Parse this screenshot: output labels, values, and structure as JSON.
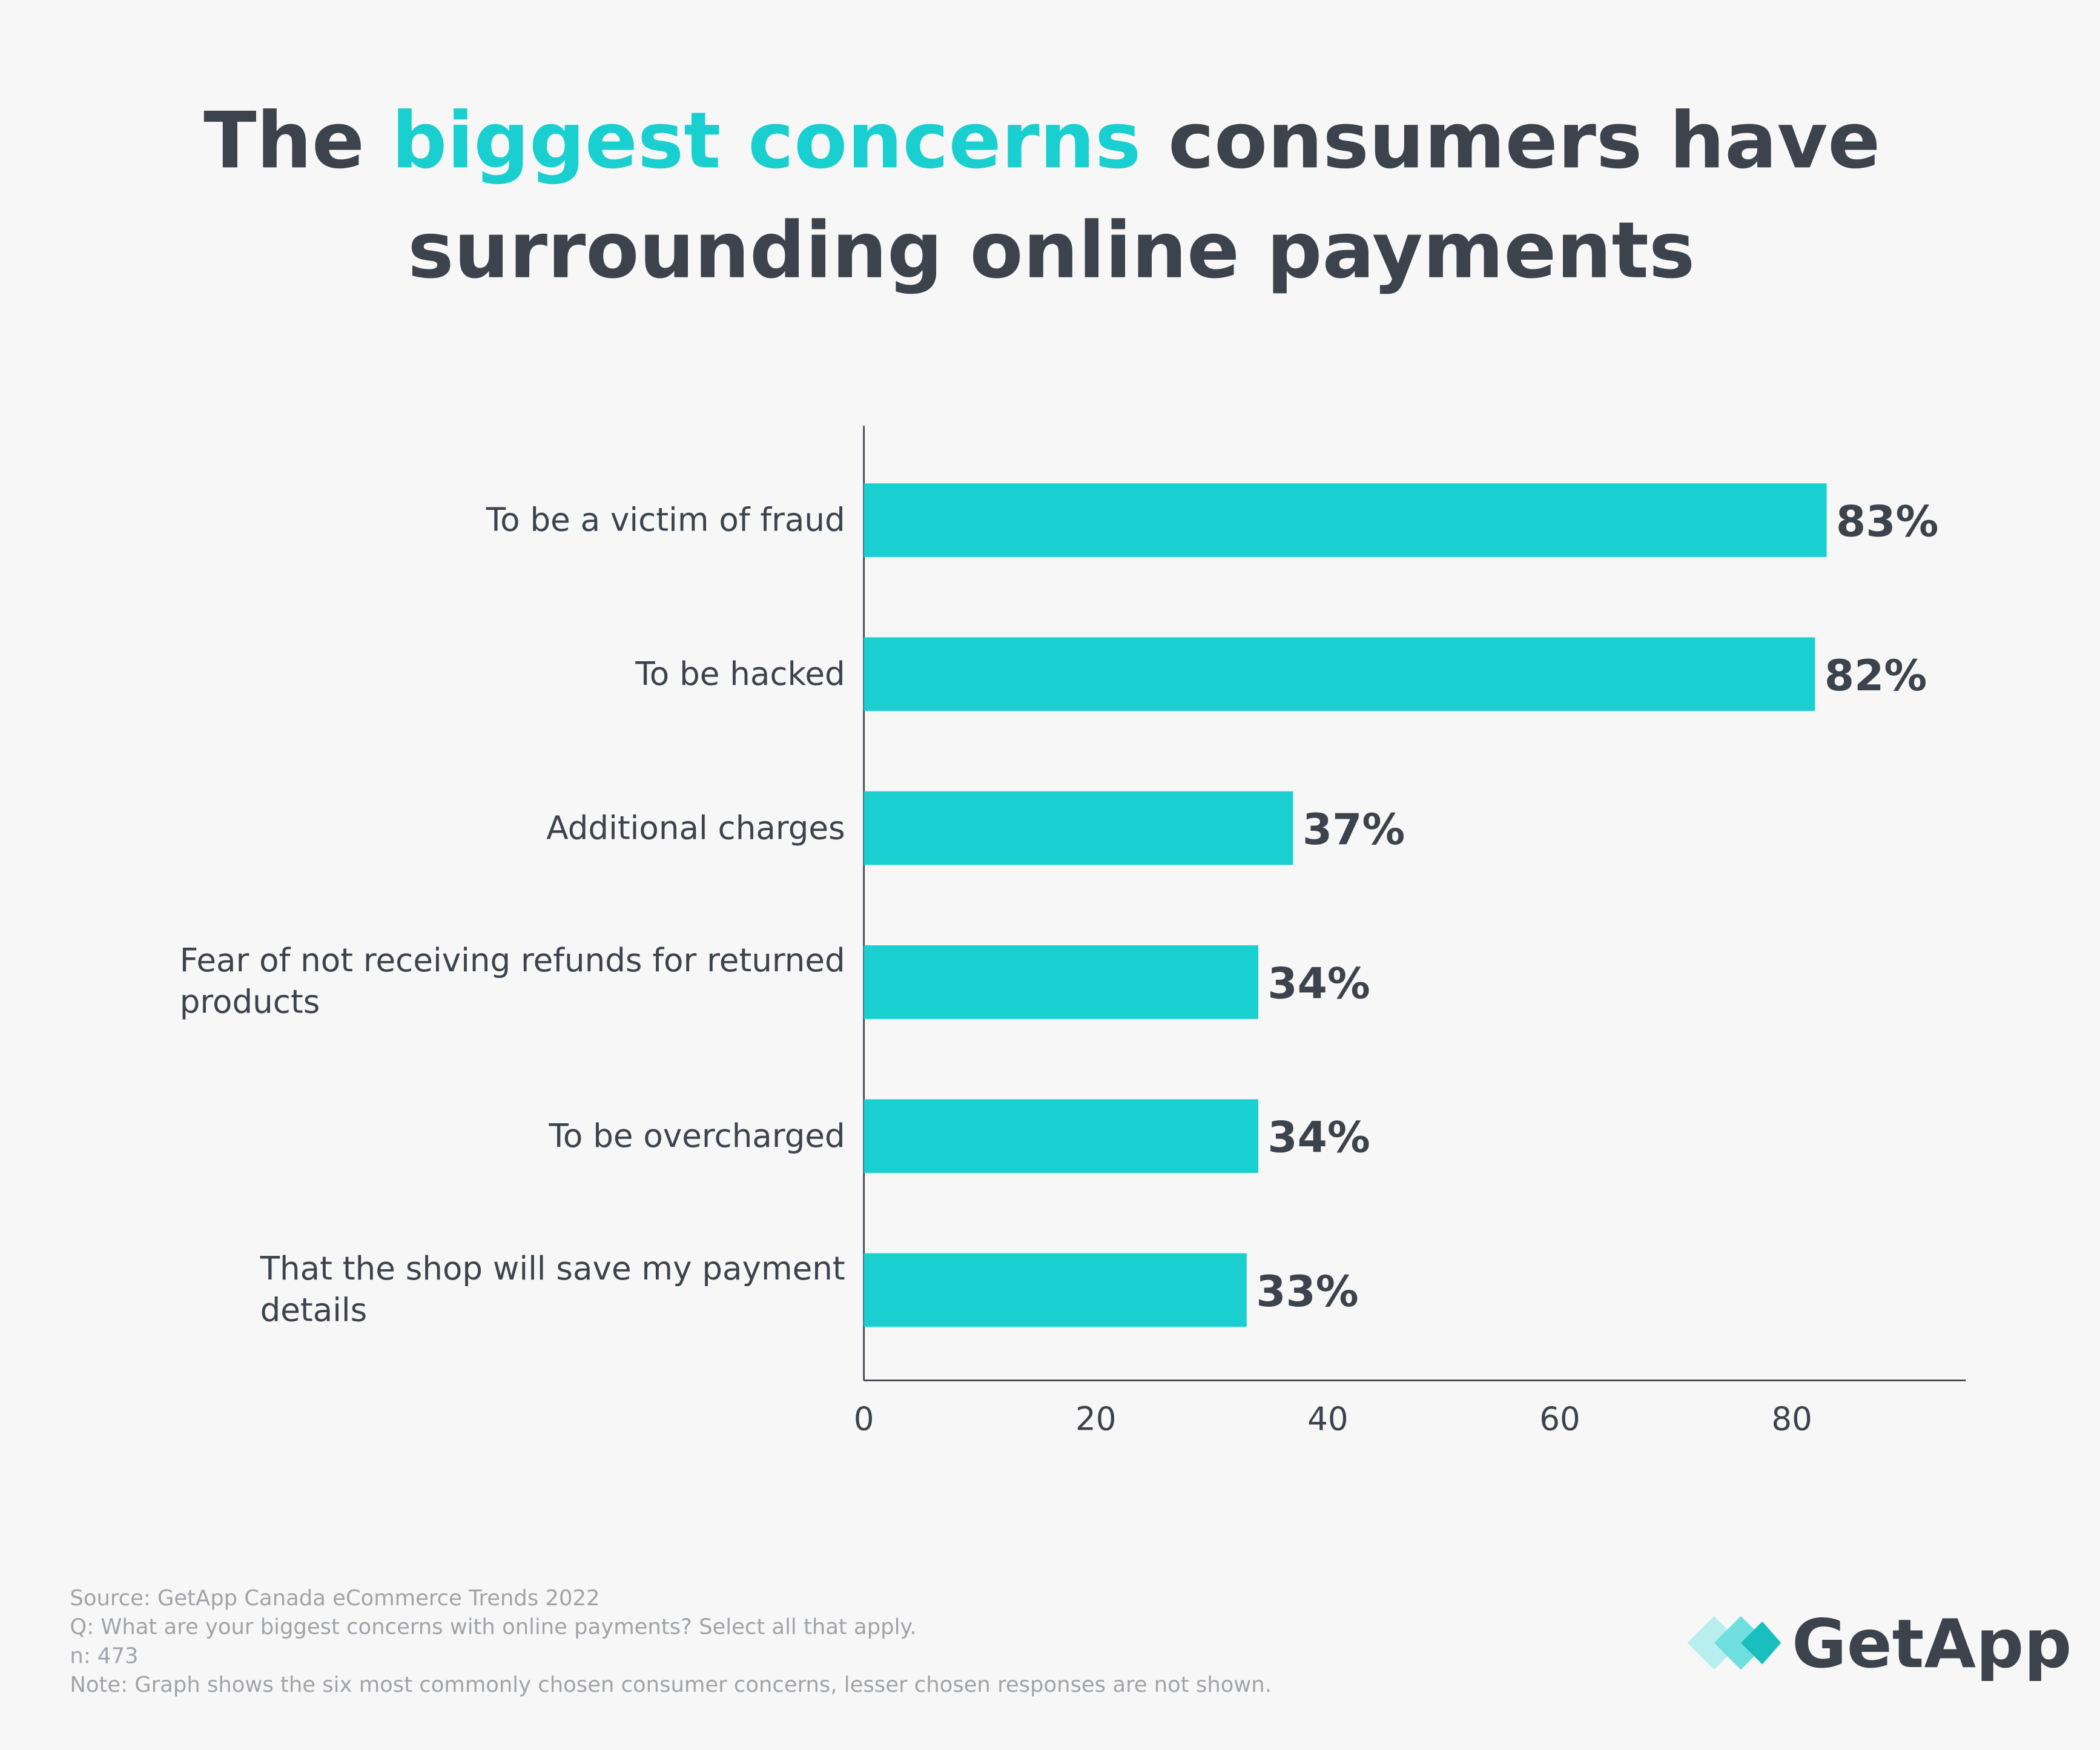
{
  "chart_data": {
    "type": "bar",
    "orientation": "horizontal",
    "title": [
      "The",
      "biggest concerns",
      "consumers have",
      "surrounding online payments"
    ],
    "categories": [
      "To be a victim of fraud",
      "To be hacked",
      "Additional charges",
      "Fear of not receiving refunds for returned products",
      "To be overcharged",
      "That the shop will save my payment details"
    ],
    "values": [
      83,
      82,
      37,
      34,
      34,
      33
    ],
    "value_labels": [
      "83%",
      "82%",
      "37%",
      "34%",
      "34%",
      "33%"
    ],
    "color": "#19cfcf",
    "xlim": [
      0,
      95
    ],
    "xticks": [
      0,
      20,
      40,
      60,
      80
    ],
    "grid": false,
    "notes": [
      "Source: GetApp Canada eCommerce Trends 2022",
      "Q: What are your biggest concerns with online payments? Select all that apply.",
      "n: 473",
      "Note: Graph shows the six most commonly chosen consumer concerns, lesser chosen responses are not shown."
    ],
    "logo": "GetApp"
  }
}
